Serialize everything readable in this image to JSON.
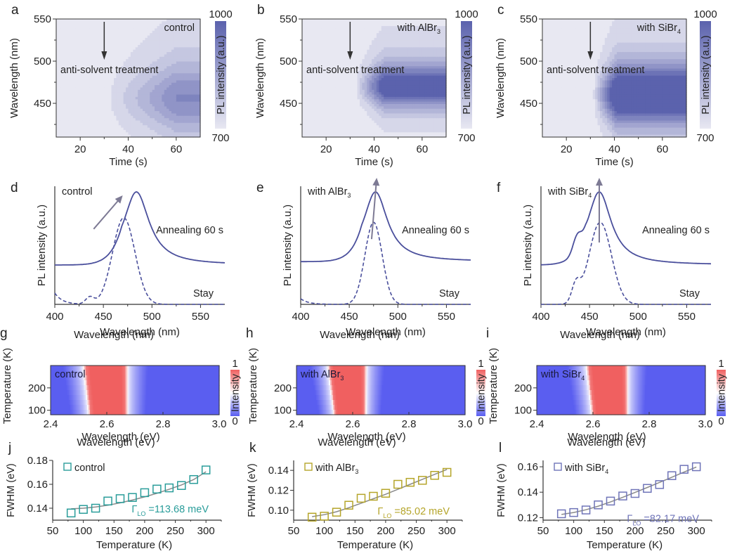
{
  "chart_data": [
    {
      "id": "a",
      "type": "heatmap",
      "panel_label": "a",
      "title": "control",
      "xlabel": "Time (s)",
      "ylabel": "Wavelength (nm)",
      "xlim": [
        10,
        70
      ],
      "ylim": [
        410,
        550
      ],
      "xticks": [
        20,
        40,
        60
      ],
      "yticks": [
        450,
        500,
        550
      ],
      "colorbar": {
        "label": "PL intensity (a.u.)",
        "min": 700,
        "max": 1000,
        "min_label": "700",
        "max_label": "1000",
        "low_color": "#e8e8f2",
        "high_color": "#5b62ad"
      },
      "annotation": {
        "text": "anti-solvent treatment",
        "arrow_at_time": 30
      },
      "emission": {
        "onset_time": 30,
        "peak_wavelength": 455,
        "halfwidth_nm": 30,
        "max_intensity": 0.45,
        "rise_time": 30
      }
    },
    {
      "id": "b",
      "type": "heatmap",
      "panel_label": "b",
      "title": "with AlBr",
      "title_sub": "3",
      "xlabel": "Time (s)",
      "ylabel": "Wavelength (nm)",
      "xlim": [
        10,
        70
      ],
      "ylim": [
        410,
        550
      ],
      "xticks": [
        20,
        40,
        60
      ],
      "yticks": [
        450,
        500,
        550
      ],
      "colorbar": {
        "label": "PL intensity (a.u.)",
        "min": 700,
        "max": 1000,
        "min_label": "700",
        "max_label": "1000",
        "low_color": "#e8e8f2",
        "high_color": "#5b62ad"
      },
      "annotation": {
        "text": "anti-solvent treatment",
        "arrow_at_time": 30
      },
      "emission": {
        "onset_time": 32,
        "peak_wavelength": 470,
        "halfwidth_nm": 20,
        "max_intensity": 0.9,
        "rise_time": 12
      }
    },
    {
      "id": "c",
      "type": "heatmap",
      "panel_label": "c",
      "title": "with SiBr",
      "title_sub": "4",
      "xlabel": "Time (s)",
      "ylabel": "Wavelength (nm)",
      "xlim": [
        10,
        70
      ],
      "ylim": [
        410,
        550
      ],
      "xticks": [
        20,
        40,
        60
      ],
      "yticks": [
        450,
        500,
        550
      ],
      "colorbar": {
        "label": "PL intensity (a.u.)",
        "min": 700,
        "max": 1000,
        "min_label": "700",
        "max_label": "1000",
        "low_color": "#e8e8f2",
        "high_color": "#5b62ad"
      },
      "annotation": {
        "text": "anti-solvent treatment",
        "arrow_at_time": 30
      },
      "emission": {
        "onset_time": 31,
        "peak_wavelength": 460,
        "halfwidth_nm": 28,
        "max_intensity": 1.1,
        "rise_time": 10
      }
    },
    {
      "id": "d",
      "type": "line",
      "panel_label": "d",
      "title": "control",
      "xlabel": "Wavelength (nm)",
      "ylabel": "PL intensity (a.u.)",
      "xlim": [
        400,
        575
      ],
      "ylim": [
        0,
        1.05
      ],
      "xticks": [
        400,
        450,
        500,
        550
      ],
      "series": [
        {
          "name": "Annealing 60 s",
          "style": "solid",
          "peak_nm": 484,
          "peak_value": 1.0,
          "baseline": 0.35,
          "width_nm": 16
        },
        {
          "name": "Stay",
          "style": "dashed",
          "peak_nm": 471,
          "peak_value": 0.77,
          "baseline": 0.0,
          "width_nm": 13,
          "shoulder_nm": 436,
          "shoulder_value": 0.18,
          "edge_value": 0.1
        }
      ],
      "arrow": {
        "from": [
          440,
          0.67
        ],
        "to": [
          468,
          0.95
        ]
      }
    },
    {
      "id": "e",
      "type": "line",
      "panel_label": "e",
      "title": "with AlBr",
      "title_sub": "3",
      "xlabel": "Wavelength (nm)",
      "ylabel": "PL intensity (a.u.)",
      "xlim": [
        400,
        575
      ],
      "ylim": [
        0,
        1.05
      ],
      "xticks": [
        400,
        450,
        500,
        550
      ],
      "series": [
        {
          "name": "Annealing 60 s",
          "style": "solid",
          "peak_nm": 477,
          "peak_value": 1.0,
          "baseline": 0.38,
          "width_nm": 15
        },
        {
          "name": "Stay",
          "style": "dashed",
          "peak_nm": 475,
          "peak_value": 0.73,
          "baseline": 0.0,
          "width_nm": 10,
          "edge_value": 0.05
        }
      ],
      "arrow": {
        "from": [
          473,
          0.58
        ],
        "to": [
          478,
          1.1
        ]
      }
    },
    {
      "id": "f",
      "type": "line",
      "panel_label": "f",
      "title": "with SiBr",
      "title_sub": "4",
      "xlabel": "Wavelength (nm)",
      "ylabel": "PL intensity (a.u.)",
      "xlim": [
        400,
        575
      ],
      "ylim": [
        0,
        1.05
      ],
      "xticks": [
        400,
        450,
        500,
        550
      ],
      "series": [
        {
          "name": "Annealing 60 s",
          "style": "solid",
          "peak_nm": 460,
          "peak_value": 1.0,
          "baseline": 0.35,
          "width_nm": 15,
          "shoulder_nm": 437,
          "shoulder_value": 0.72
        },
        {
          "name": "Stay",
          "style": "dashed",
          "peak_nm": 461,
          "peak_value": 0.73,
          "baseline": 0.0,
          "width_nm": 13,
          "shoulder_nm": 436,
          "shoulder_value": 0.45
        }
      ],
      "arrow": {
        "from": [
          460,
          0.55
        ],
        "to": [
          460,
          1.1
        ]
      }
    },
    {
      "id": "g",
      "type": "heatmap",
      "panel_label": "g",
      "title": "control",
      "top_label": "Wavelength (nm)",
      "xlabel": "Wavelength (eV)",
      "ylabel": "Temperature (K)",
      "xlim": [
        2.4,
        3.0
      ],
      "ylim": [
        80,
        300
      ],
      "xticks": [
        2.4,
        2.6,
        2.8,
        3.0
      ],
      "yticks": [
        100,
        200
      ],
      "colorbar": {
        "label": "Intensity",
        "min_label": "0",
        "max_label": "1",
        "low_color": "#5a5ef0",
        "mid_color": "#ffffff",
        "high_color": "#f06060"
      },
      "band": {
        "center_low_T": 2.605,
        "center_high_T": 2.595,
        "halfwidth_low_T": 0.07,
        "halfwidth_high_T": 0.08
      }
    },
    {
      "id": "h",
      "type": "heatmap",
      "panel_label": "h",
      "title": "with AlBr",
      "title_sub": "3",
      "top_label": "Wavelength (nm)",
      "xlabel": "Wavelength (eV)",
      "ylabel": "Temperature (K)",
      "xlim": [
        2.4,
        3.0
      ],
      "ylim": [
        80,
        300
      ],
      "xticks": [
        2.4,
        2.6,
        2.8,
        3.0
      ],
      "yticks": [
        100,
        200
      ],
      "colorbar": {
        "label": "Intensity",
        "min_label": "0",
        "max_label": "1",
        "low_color": "#5a5ef0",
        "mid_color": "#ffffff",
        "high_color": "#f06060"
      },
      "band": {
        "center_low_T": 2.59,
        "center_high_T": 2.58,
        "halfwidth_low_T": 0.058,
        "halfwidth_high_T": 0.07
      }
    },
    {
      "id": "i",
      "type": "heatmap",
      "panel_label": "i",
      "title": "with SiBr",
      "title_sub": "4",
      "top_label": "Wavelength (nm)",
      "xlabel": "Wavelength (eV)",
      "ylabel": "Temperature (K)",
      "xlim": [
        2.4,
        3.0
      ],
      "ylim": [
        80,
        300
      ],
      "xticks": [
        2.4,
        2.6,
        2.8,
        3.0
      ],
      "yticks": [
        100,
        200
      ],
      "colorbar": {
        "label": "Intensity",
        "min_label": "0",
        "max_label": "1",
        "low_color": "#5a5ef0",
        "mid_color": "#ffffff",
        "high_color": "#f06060"
      },
      "band": {
        "center_low_T": 2.66,
        "center_high_T": 2.65,
        "halfwidth_low_T": 0.065,
        "halfwidth_high_T": 0.075
      }
    },
    {
      "id": "j",
      "type": "scatter",
      "panel_label": "j",
      "legend": "control",
      "legend_sub": "",
      "xlabel": "Temperature (K)",
      "ylabel": "FWHM (eV)",
      "xlim": [
        50,
        325
      ],
      "ylim": [
        0.13,
        0.18
      ],
      "xticks": [
        50,
        100,
        150,
        200,
        250,
        300
      ],
      "yticks": [
        0.14,
        0.16,
        0.18
      ],
      "ytick_labels": [
        "0.14",
        "0.16",
        "0.18"
      ],
      "color": "#2a9d9a",
      "x": [
        80,
        100,
        120,
        140,
        160,
        180,
        200,
        220,
        240,
        260,
        280,
        300
      ],
      "y": [
        0.136,
        0.139,
        0.14,
        0.146,
        0.148,
        0.149,
        0.153,
        0.156,
        0.157,
        0.159,
        0.164,
        0.172
      ],
      "fit": [
        0.1395,
        0.14,
        0.141,
        0.1425,
        0.1445,
        0.1468,
        0.1495,
        0.1525,
        0.1558,
        0.1595,
        0.164,
        0.1705
      ],
      "fit_label": "=113.68 meV"
    },
    {
      "id": "k",
      "type": "scatter",
      "panel_label": "k",
      "legend": "with AlBr",
      "legend_sub": "3",
      "xlabel": "Temperature (K)",
      "ylabel": "FWHM (eV)",
      "xlim": [
        50,
        325
      ],
      "ylim": [
        0.09,
        0.15
      ],
      "xticks": [
        50,
        100,
        150,
        200,
        250,
        300
      ],
      "yticks": [
        0.1,
        0.12,
        0.14
      ],
      "ytick_labels": [
        "0.10",
        "0.12",
        "0.14"
      ],
      "color": "#b5a52a",
      "x": [
        80,
        100,
        120,
        140,
        160,
        180,
        200,
        220,
        240,
        260,
        280,
        300
      ],
      "y": [
        0.093,
        0.094,
        0.098,
        0.105,
        0.112,
        0.114,
        0.117,
        0.126,
        0.128,
        0.13,
        0.135,
        0.138
      ],
      "fit": [
        0.0935,
        0.0955,
        0.0985,
        0.1025,
        0.107,
        0.1115,
        0.116,
        0.121,
        0.126,
        0.131,
        0.136,
        0.141
      ],
      "fit_label": "=85.02 meV"
    },
    {
      "id": "l",
      "type": "scatter",
      "panel_label": "l",
      "legend": "with SiBr",
      "legend_sub": "4",
      "xlabel": "Temperature (K)",
      "ylabel": "FWHM (eV)",
      "xlim": [
        50,
        325
      ],
      "ylim": [
        0.118,
        0.165
      ],
      "xticks": [
        50,
        100,
        150,
        200,
        250,
        300
      ],
      "yticks": [
        0.12,
        0.14,
        0.16
      ],
      "ytick_labels": [
        "0.12",
        "0.14",
        "0.16"
      ],
      "color": "#6f74b8",
      "x": [
        80,
        100,
        120,
        140,
        160,
        180,
        200,
        220,
        240,
        260,
        280,
        300
      ],
      "y": [
        0.123,
        0.124,
        0.126,
        0.13,
        0.133,
        0.137,
        0.139,
        0.143,
        0.146,
        0.153,
        0.158,
        0.16
      ],
      "fit": [
        0.1225,
        0.124,
        0.1262,
        0.129,
        0.1323,
        0.136,
        0.1398,
        0.1437,
        0.1477,
        0.1518,
        0.1558,
        0.1598
      ],
      "fit_label": "=82.17 meV"
    }
  ],
  "labels": {
    "gamma": "Γ",
    "gamma_sub": "LO"
  }
}
